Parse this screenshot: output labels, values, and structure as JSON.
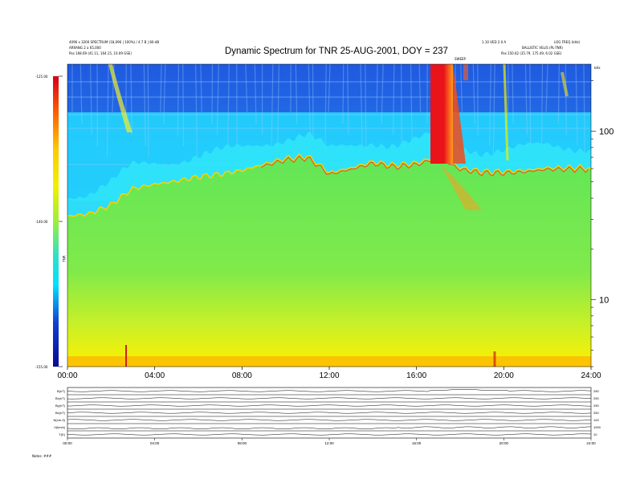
{
  "header": {
    "title": "Dynamic Spectrum for TNR 25-AUG-2001, DOY = 237",
    "left_line1": "4096 x 3200 SPECTRUM (18,096 | 100%) / 4.7 B | 80-dB",
    "left_line2": "ARRANG 2 a 65,000",
    "left_line3": "Pos 168.69 (41.11, 164.15, 10.09 GSE)",
    "right_line1": "1.10 VED 2.0 A",
    "right_line2": "LOG FREQ (kHz)",
    "right_line3": "BALLISTIC VEL/S (PL-TNR)",
    "right_line4": "Pos 150.62 (35.79, 175.49, 6.02 GSE)",
    "event_label": "SWEEP",
    "freq_unit": "kHz"
  },
  "chart_data": {
    "type": "heatmap",
    "title": "Dynamic Spectrum for TNR 25-AUG-2001, DOY = 237",
    "x_ticks": [
      "00:00",
      "04:00",
      "08:00",
      "12:00",
      "16:00",
      "20:00",
      "24:00"
    ],
    "xlim_hours": [
      0,
      24
    ],
    "y_scale": "log",
    "ylim_khz": [
      4,
      250
    ],
    "y_ticks": [
      {
        "value": 100,
        "label": "100"
      },
      {
        "value": 10,
        "label": "10"
      }
    ],
    "colorbar": {
      "label": "TNR",
      "ticks": [
        "-125.00",
        "-140.00",
        "-155.00"
      ],
      "range": [
        -155,
        -125
      ]
    },
    "background_level_hours": [
      0,
      1,
      2,
      3,
      4,
      5,
      6,
      7,
      8,
      9,
      10,
      11,
      12,
      13,
      14,
      15,
      16,
      17,
      18,
      19,
      20,
      21,
      22,
      23,
      24
    ],
    "background_level_khz": [
      31,
      32,
      36,
      45,
      48,
      50,
      53,
      55,
      58,
      63,
      68,
      70,
      56,
      60,
      65,
      62,
      64,
      70,
      60,
      57,
      57,
      58,
      60,
      60,
      60
    ]
  },
  "panels": {
    "rows": [
      {
        "label": "B(nT)",
        "max": "250"
      },
      {
        "label": "Bx(nT)",
        "max": "250"
      },
      {
        "label": "By(nT)",
        "max": "250"
      },
      {
        "label": "Bz(nT)",
        "max": "250"
      },
      {
        "label": "N(cm-3)",
        "max": "100"
      },
      {
        "label": "V(km/s)",
        "max": "1000"
      },
      {
        "label": "T(K)",
        "max": "10"
      }
    ],
    "x_ticks": [
      "00:00",
      "04:00",
      "08:00",
      "12:00",
      "16:00",
      "20:00",
      "24:00"
    ],
    "footer_label": "Notes: ###"
  },
  "colors": {
    "background": "#ffffff",
    "plasma_green": "#66e85a",
    "cyan": "#22e0ff",
    "burst_red": "#e8141a",
    "floor_yellow": "#fff000"
  }
}
